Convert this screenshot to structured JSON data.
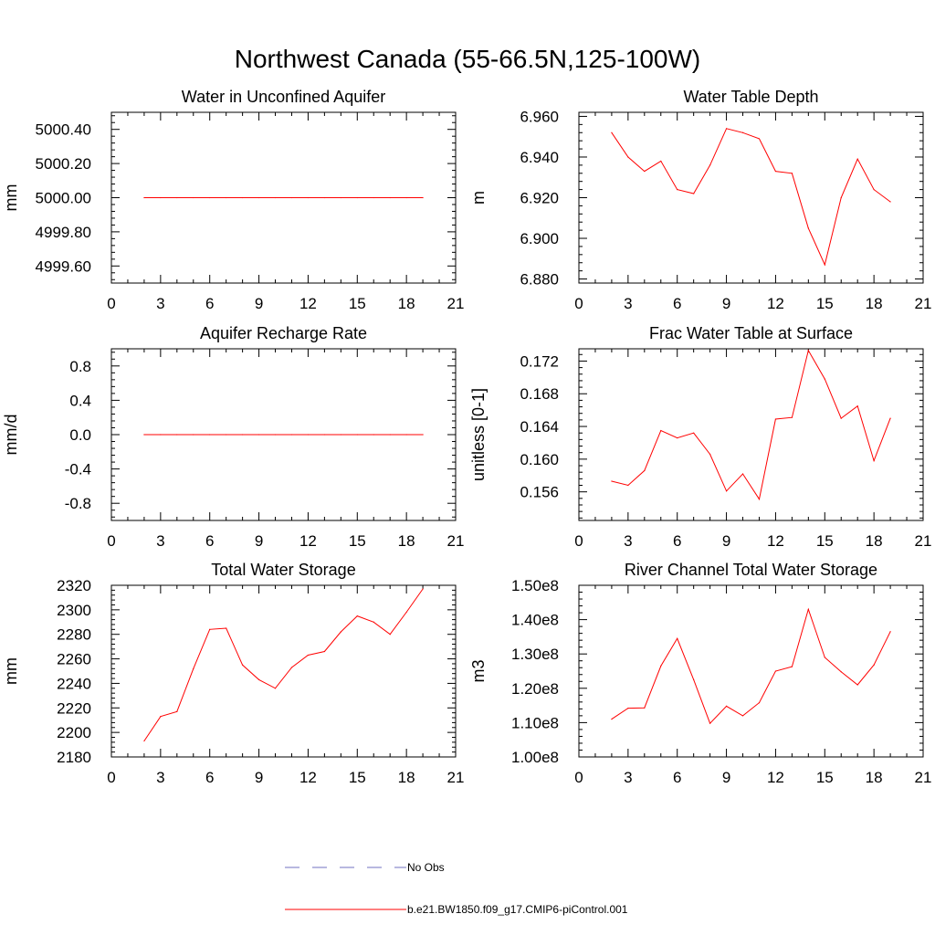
{
  "page_title": "Northwest Canada (55-66.5N,125-100W)",
  "colors": {
    "series": "#ff0000",
    "obs": "#7070c0",
    "axis": "#000000"
  },
  "legend": {
    "items": [
      {
        "label": "No Obs",
        "color": "#7070c0",
        "dash": "dashed"
      },
      {
        "label": "b.e21.BW1850.f09_g17.CMIP6-piControl.001",
        "color": "#ff0000",
        "dash": "solid"
      }
    ]
  },
  "chart_data": [
    {
      "type": "line",
      "title": "Water in Unconfined Aquifer",
      "ylabel": "mm",
      "xlim": [
        0,
        21
      ],
      "ylim": [
        4999.5,
        5000.5
      ],
      "xticks": [
        0,
        3,
        6,
        9,
        12,
        15,
        18,
        21
      ],
      "yticks": [
        4999.6,
        4999.8,
        5000.0,
        5000.2,
        5000.4
      ],
      "ytick_labels": [
        "4999.60",
        "4999.80",
        "5000.00",
        "5000.20",
        "5000.40"
      ],
      "x": [
        2,
        3,
        4,
        5,
        6,
        7,
        8,
        9,
        10,
        11,
        12,
        13,
        14,
        15,
        16,
        17,
        18,
        19
      ],
      "values": [
        5000.0,
        5000.0,
        5000.0,
        5000.0,
        5000.0,
        5000.0,
        5000.0,
        5000.0,
        5000.0,
        5000.0,
        5000.0,
        5000.0,
        5000.0,
        5000.0,
        5000.0,
        5000.0,
        5000.0,
        5000.0
      ]
    },
    {
      "type": "line",
      "title": "Water Table Depth",
      "ylabel": "m",
      "xlim": [
        0,
        21
      ],
      "ylim": [
        6.878,
        6.962
      ],
      "xticks": [
        0,
        3,
        6,
        9,
        12,
        15,
        18,
        21
      ],
      "yticks": [
        6.88,
        6.9,
        6.92,
        6.94,
        6.96
      ],
      "ytick_labels": [
        "6.880",
        "6.900",
        "6.920",
        "6.940",
        "6.960"
      ],
      "x": [
        2,
        3,
        4,
        5,
        6,
        7,
        8,
        9,
        10,
        11,
        12,
        13,
        14,
        15,
        16,
        17,
        18,
        19
      ],
      "values": [
        6.952,
        6.94,
        6.933,
        6.938,
        6.924,
        6.922,
        6.936,
        6.954,
        6.952,
        6.949,
        6.933,
        6.932,
        6.905,
        6.887,
        6.92,
        6.939,
        6.924,
        6.918
      ]
    },
    {
      "type": "line",
      "title": "Aquifer Recharge Rate",
      "ylabel": "mm/d",
      "xlim": [
        0,
        21
      ],
      "ylim": [
        -1.0,
        1.0
      ],
      "xticks": [
        0,
        3,
        6,
        9,
        12,
        15,
        18,
        21
      ],
      "yticks": [
        -0.8,
        -0.4,
        0.0,
        0.4,
        0.8
      ],
      "ytick_labels": [
        "-0.8",
        "-0.4",
        "0.0",
        "0.4",
        "0.8"
      ],
      "x": [
        2,
        3,
        4,
        5,
        6,
        7,
        8,
        9,
        10,
        11,
        12,
        13,
        14,
        15,
        16,
        17,
        18,
        19
      ],
      "values": [
        0,
        0,
        0,
        0,
        0,
        0,
        0,
        0,
        0,
        0,
        0,
        0,
        0,
        0,
        0,
        0,
        0,
        0
      ]
    },
    {
      "type": "line",
      "title": "Frac Water Table at Surface",
      "ylabel": "unitless [0-1]",
      "xlim": [
        0,
        21
      ],
      "ylim": [
        0.1525,
        0.1735
      ],
      "xticks": [
        0,
        3,
        6,
        9,
        12,
        15,
        18,
        21
      ],
      "yticks": [
        0.156,
        0.16,
        0.164,
        0.168,
        0.172
      ],
      "ytick_labels": [
        "0.156",
        "0.160",
        "0.164",
        "0.168",
        "0.172"
      ],
      "x": [
        2,
        3,
        4,
        5,
        6,
        7,
        8,
        9,
        10,
        11,
        12,
        13,
        14,
        15,
        16,
        17,
        18,
        19
      ],
      "values": [
        0.1573,
        0.1568,
        0.1586,
        0.1635,
        0.1626,
        0.1632,
        0.1606,
        0.1561,
        0.1582,
        0.1551,
        0.1649,
        0.1651,
        0.1733,
        0.1698,
        0.165,
        0.1665,
        0.1598,
        0.165
      ]
    },
    {
      "type": "line",
      "title": "Total Water Storage",
      "ylabel": "mm",
      "xlim": [
        0,
        21
      ],
      "ylim": [
        2180,
        2320
      ],
      "xticks": [
        0,
        3,
        6,
        9,
        12,
        15,
        18,
        21
      ],
      "yticks": [
        2180,
        2200,
        2220,
        2240,
        2260,
        2280,
        2300,
        2320
      ],
      "ytick_labels": [
        "2180",
        "2200",
        "2220",
        "2240",
        "2260",
        "2280",
        "2300",
        "2320"
      ],
      "x": [
        2,
        3,
        4,
        5,
        6,
        7,
        8,
        9,
        10,
        11,
        12,
        13,
        14,
        15,
        16,
        17,
        18,
        19
      ],
      "values": [
        2193,
        2213,
        2217,
        2252,
        2284,
        2285,
        2255,
        2243,
        2236,
        2253,
        2263,
        2266,
        2282,
        2295,
        2290,
        2280,
        2298,
        2317
      ]
    },
    {
      "type": "line",
      "title": "River Channel Total Water Storage",
      "ylabel": "m3",
      "xlim": [
        0,
        21
      ],
      "ylim": [
        100000000,
        150000000
      ],
      "xticks": [
        0,
        3,
        6,
        9,
        12,
        15,
        18,
        21
      ],
      "yticks": [
        100000000,
        110000000,
        120000000,
        130000000,
        140000000,
        150000000
      ],
      "ytick_labels": [
        "1.00e8",
        "1.10e8",
        "1.20e8",
        "1.30e8",
        "1.40e8",
        "1.50e8"
      ],
      "x": [
        2,
        3,
        4,
        5,
        6,
        7,
        8,
        9,
        10,
        11,
        12,
        13,
        14,
        15,
        16,
        17,
        18,
        19
      ],
      "values": [
        111000000,
        114200000,
        114300000,
        126500000,
        134500000,
        122500000,
        109800000,
        114800000,
        112000000,
        115800000,
        125000000,
        126300000,
        143000000,
        129000000,
        124800000,
        121000000,
        126800000,
        136500000
      ]
    }
  ]
}
